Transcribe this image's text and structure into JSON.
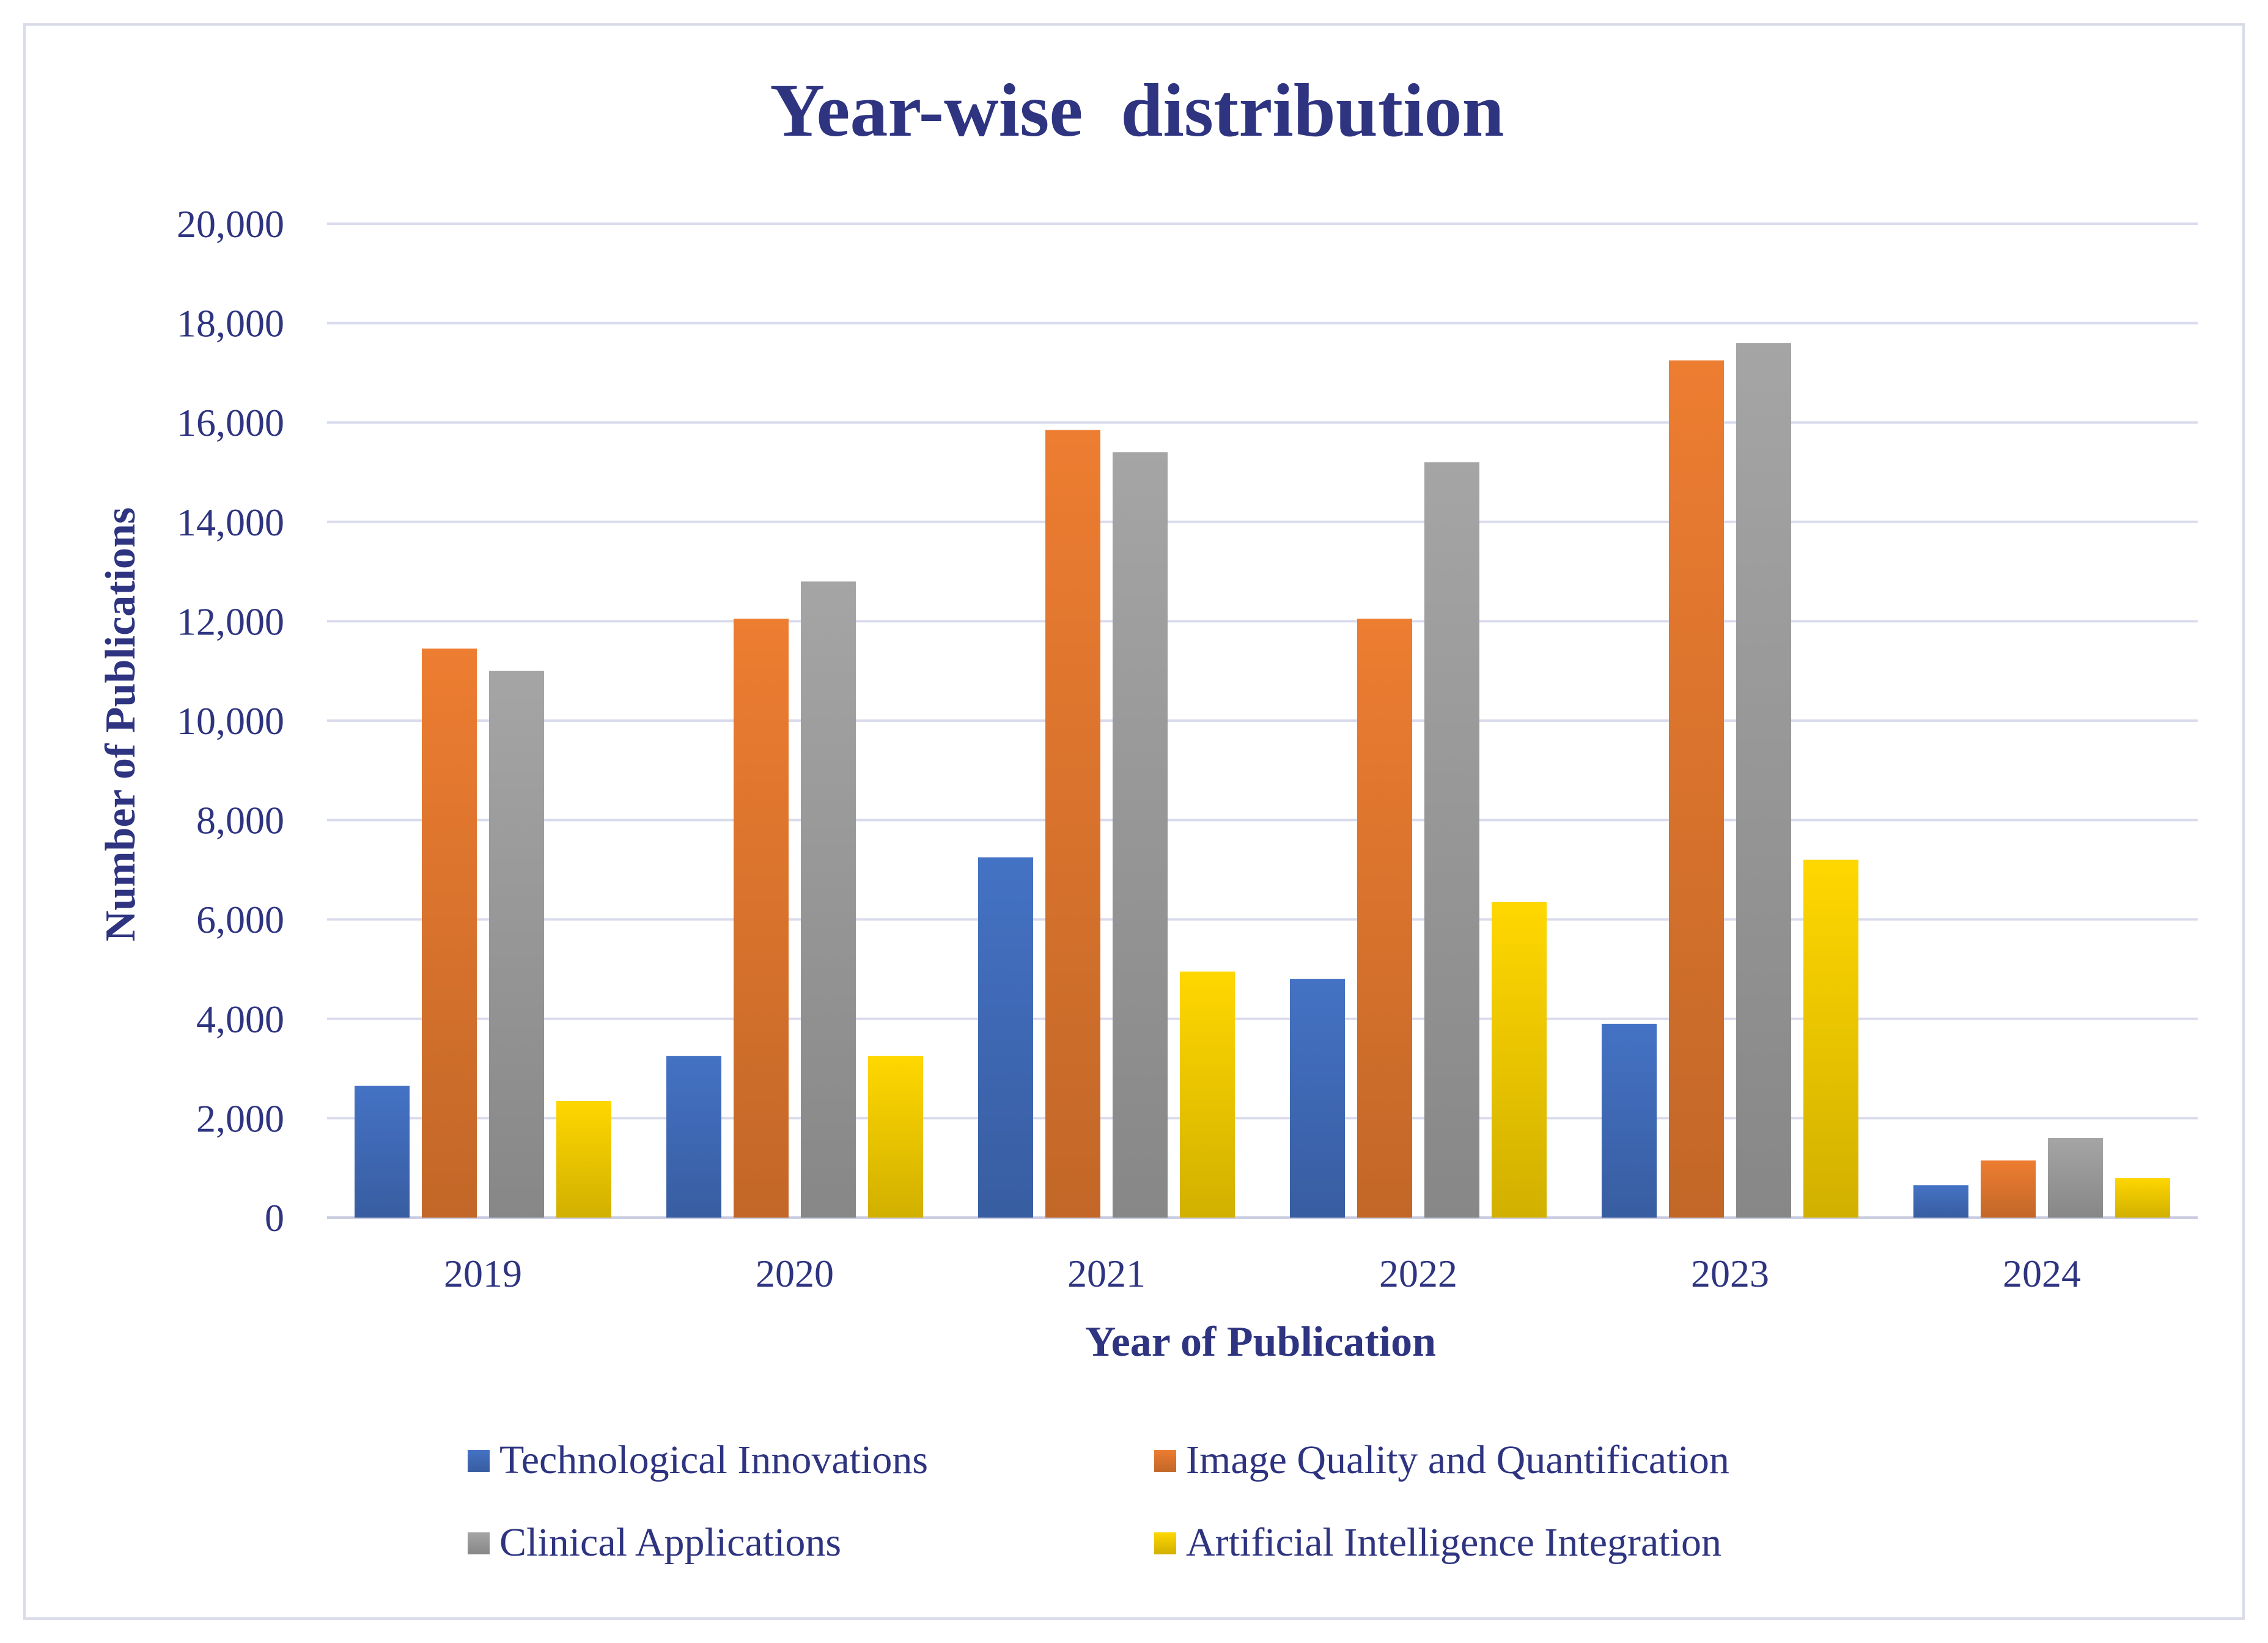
{
  "chart_data": {
    "type": "bar",
    "title": "Year-wise  distribution",
    "xlabel": "Year of Publication",
    "ylabel": "Number of Publications",
    "categories": [
      "2019",
      "2020",
      "2021",
      "2022",
      "2023",
      "2024"
    ],
    "ylim": [
      0,
      20000
    ],
    "yticks": [
      0,
      2000,
      4000,
      6000,
      8000,
      10000,
      12000,
      14000,
      16000,
      18000,
      20000
    ],
    "ytick_labels": [
      "0",
      "2,000",
      "4,000",
      "6,000",
      "8,000",
      "10,000",
      "12,000",
      "14,000",
      "16,000",
      "18,000",
      "20,000"
    ],
    "grid": true,
    "legend_position": "bottom",
    "series": [
      {
        "name": "Technological Innovations",
        "color": "#4472c4",
        "values": [
          2650,
          3250,
          7250,
          4800,
          3900,
          650
        ]
      },
      {
        "name": "Image Quality and Quantification",
        "color": "#ed7d31",
        "values": [
          11450,
          12050,
          15850,
          12050,
          17250,
          1150
        ]
      },
      {
        "name": "Clinical Applications",
        "color": "#a5a5a5",
        "values": [
          11000,
          12800,
          15400,
          15200,
          17600,
          1600
        ]
      },
      {
        "name": "Artificial Intelligence Integration",
        "color": "#ffd700",
        "values": [
          2350,
          3250,
          4950,
          6350,
          7200,
          800
        ]
      }
    ]
  }
}
